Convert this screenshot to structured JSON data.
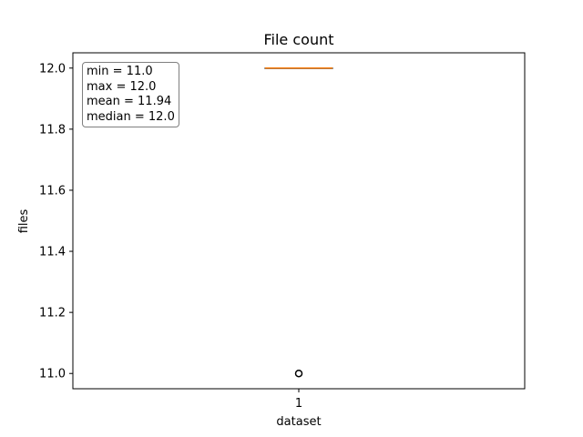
{
  "chart_data": {
    "type": "box",
    "title": "File count",
    "xlabel": "dataset",
    "ylabel": "files",
    "categories": [
      "1"
    ],
    "ylim": [
      10.95,
      12.05
    ],
    "yticks": [
      {
        "value": 11.0,
        "label": "11.0"
      },
      {
        "value": 11.2,
        "label": "11.2"
      },
      {
        "value": 11.4,
        "label": "11.4"
      },
      {
        "value": 11.6,
        "label": "11.6"
      },
      {
        "value": 11.8,
        "label": "11.8"
      },
      {
        "value": 12.0,
        "label": "12.0"
      }
    ],
    "box": {
      "q1": 12.0,
      "median": 12.0,
      "q3": 12.0,
      "whisker_low": 12.0,
      "whisker_high": 12.0,
      "outliers": [
        11.0
      ]
    },
    "stats": {
      "min": "min = 11.0",
      "max": "max = 12.0",
      "mean": "mean = 11.94",
      "median": "median = 12.0"
    },
    "colors": {
      "box": "#000000",
      "median": "#ff7f0e",
      "outlier": "#000000"
    },
    "grid": false,
    "legend": "none"
  }
}
